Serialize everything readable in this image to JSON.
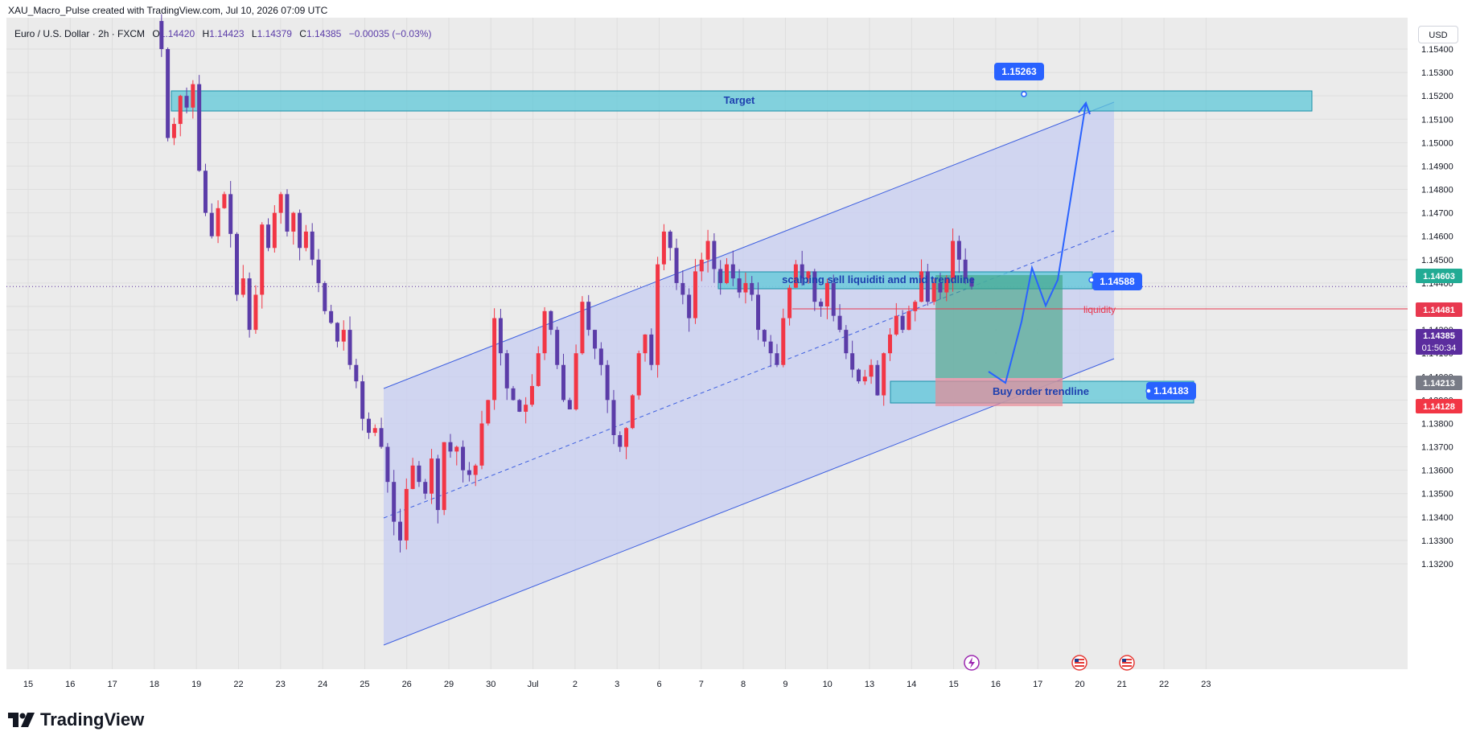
{
  "header": {
    "credit": "XAU_Macro_Pulse created with TradingView.com, Jul 10, 2026 07:09 UTC",
    "symbol": "Euro / U.S. Dollar · 2h · FXCM",
    "open_label": "O",
    "open": "1.14420",
    "high_label": "H",
    "high": "1.14423",
    "low_label": "L",
    "low": "1.14379",
    "close_label": "C",
    "close": "1.14385",
    "change": "−0.00035 (−0.03%)"
  },
  "currency_button": "USD",
  "brand": "TradingView",
  "colors": {
    "background": "#ebebeb",
    "up_candle": "#f23645",
    "down_candle": "#5b3ca8",
    "channel_fill": "#c7cdf2",
    "channel_line": "#3d5fe0",
    "zone_fill": "#5fc8d8",
    "label_blue": "#2962ff",
    "green_box": "#3aa17e",
    "red_box": "#e98a96",
    "liquidity": "#e8384f",
    "current_price": "#5b2d9e"
  },
  "chart_data": {
    "type": "candlestick",
    "ylim": [
      1.1315,
      1.1552
    ],
    "x_ticks": [
      "15",
      "16",
      "17",
      "18",
      "19",
      "22",
      "23",
      "24",
      "25",
      "26",
      "29",
      "30",
      "Jul",
      "2",
      "3",
      "6",
      "7",
      "8",
      "9",
      "10",
      "13",
      "14",
      "15",
      "16",
      "17",
      "20",
      "21",
      "22",
      "23"
    ],
    "y_ticks": [
      "1.15400",
      "1.15300",
      "1.15200",
      "1.15100",
      "1.15000",
      "1.14900",
      "1.14800",
      "1.14700",
      "1.14600",
      "1.14500",
      "1.14400",
      "1.14300",
      "1.14200",
      "1.14100",
      "1.14000",
      "1.13900",
      "1.13800",
      "1.13700",
      "1.13600",
      "1.13500",
      "1.13400",
      "1.13300",
      "1.13200"
    ],
    "candles_close": [
      1.1552,
      1.154,
      1.1502,
      1.1508,
      1.152,
      1.1515,
      1.1525,
      1.1488,
      1.147,
      1.146,
      1.1472,
      1.1478,
      1.1461,
      1.1435,
      1.1442,
      1.142,
      1.1435,
      1.1465,
      1.1455,
      1.147,
      1.1478,
      1.1462,
      1.147,
      1.1455,
      1.1462,
      1.145,
      1.144,
      1.1428,
      1.1423,
      1.1415,
      1.142,
      1.1405,
      1.1398,
      1.1382,
      1.1376,
      1.1378,
      1.137,
      1.1355,
      1.1338,
      1.133,
      1.1352,
      1.1362,
      1.1355,
      1.135,
      1.1365,
      1.1343,
      1.1372,
      1.1368,
      1.137,
      1.136,
      1.1358,
      1.1362,
      1.138,
      1.139,
      1.1425,
      1.141,
      1.1395,
      1.139,
      1.1385,
      1.1388,
      1.1396,
      1.141,
      1.1428,
      1.142,
      1.1405,
      1.139,
      1.1386,
      1.141,
      1.1432,
      1.142,
      1.1412,
      1.1405,
      1.139,
      1.1375,
      1.137,
      1.1378,
      1.1392,
      1.141,
      1.1418,
      1.1405,
      1.1448,
      1.1462,
      1.1455,
      1.144,
      1.1435,
      1.1425,
      1.1445,
      1.145,
      1.1458,
      1.1446,
      1.144,
      1.1448,
      1.1442,
      1.1436,
      1.144,
      1.1435,
      1.142,
      1.1415,
      1.141,
      1.1405,
      1.1425,
      1.1438,
      1.1448,
      1.1442,
      1.1445,
      1.1432,
      1.143,
      1.144,
      1.1426,
      1.142,
      1.141,
      1.1403,
      1.1398,
      1.14,
      1.1405,
      1.1392,
      1.141,
      1.1418,
      1.1426,
      1.142,
      1.1428,
      1.1432,
      1.1445,
      1.1432,
      1.144,
      1.1436,
      1.1442,
      1.1458,
      1.145,
      1.1442,
      1.14385
    ],
    "current_price": "1.14385",
    "countdown": "01:50:34",
    "price_badges": [
      {
        "value": "1.14603",
        "color": "#22ab94"
      },
      {
        "value": "1.14481",
        "color": "#e8384f"
      },
      {
        "value": "1.14213",
        "color": "#787b86"
      },
      {
        "value": "1.14128",
        "color": "#f23645"
      }
    ],
    "annotations": {
      "target": "Target",
      "target_price": "1.15263",
      "sell_zone": "scalping sell liquiditi and mid trendline",
      "sell_price": "1.14588",
      "liquidity": "liquidity",
      "buy_zone": "Buy order trendline",
      "buy_price": "1.14183"
    }
  }
}
